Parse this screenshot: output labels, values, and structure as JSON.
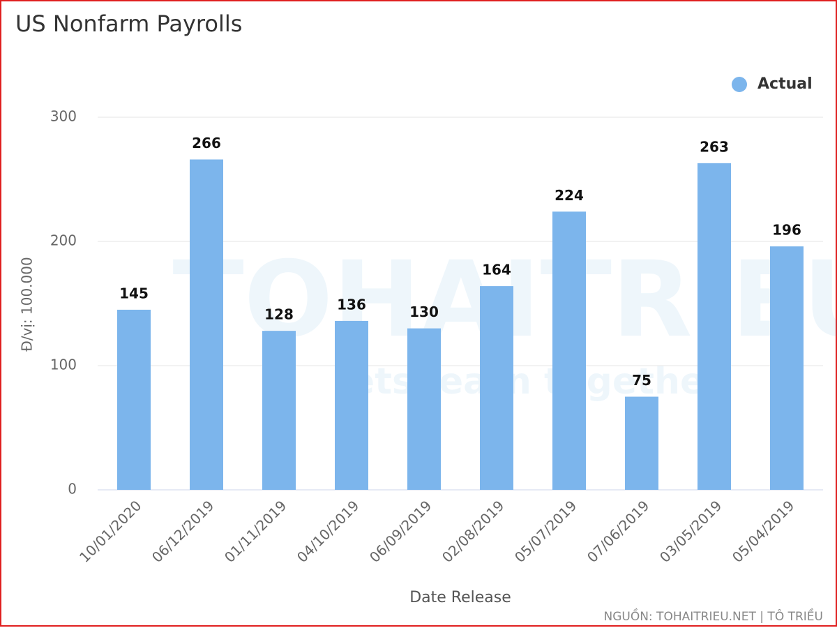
{
  "chart_data": {
    "type": "bar",
    "title": "US Nonfarm Payrolls",
    "y_label": "Đ/vị: 100.000",
    "x_label": "Date Release",
    "source": "NGUỒN: TOHAITRIEU.NET | TÔ TRIỀU",
    "watermark": [
      "TOHAITRIEU",
      "lets learn together"
    ],
    "categories": [
      "10/01/2020",
      "06/12/2019",
      "01/11/2019",
      "04/10/2019",
      "06/09/2019",
      "02/08/2019",
      "05/07/2019",
      "07/06/2019",
      "03/05/2019",
      "05/04/2019"
    ],
    "series": [
      {
        "name": "Actual",
        "color": "#7cb5ec",
        "values": [
          145,
          266,
          128,
          136,
          130,
          164,
          224,
          75,
          263,
          196
        ]
      }
    ],
    "ylim": [
      0,
      300
    ],
    "yticks": [
      0,
      100,
      200,
      300
    ],
    "grid": true,
    "legend": "top-right"
  }
}
